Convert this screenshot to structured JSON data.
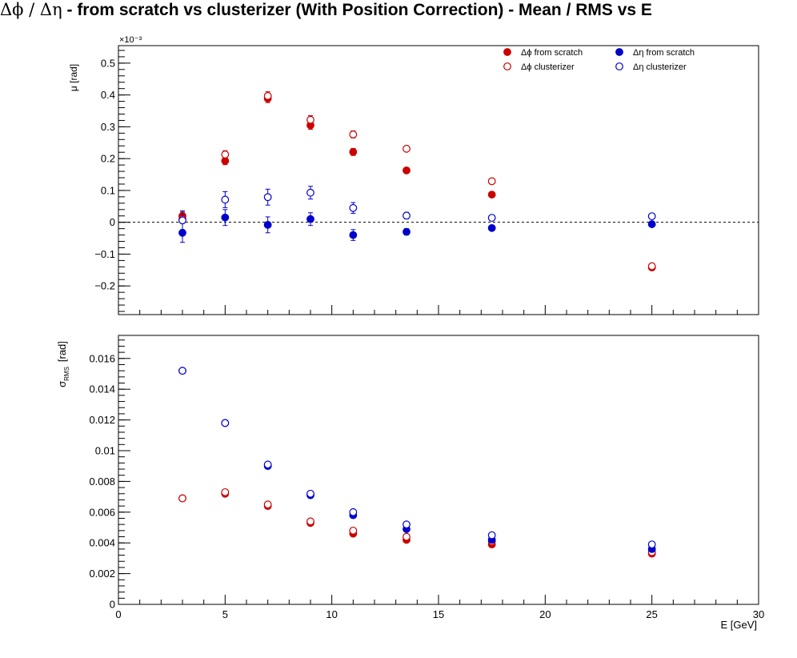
{
  "title": {
    "greek": "Δϕ / Δη",
    "rest": "  -  from scratch vs clusterizer  (With Position Correction)  -  Mean / RMS vs E"
  },
  "chart_data": [
    {
      "type": "scatter",
      "ylabel": "μ  [rad]",
      "exponent_label": "×10⁻³",
      "ylim": [
        -0.29,
        0.555
      ],
      "xlim": [
        0,
        30
      ],
      "yticks": [
        -0.2,
        -0.1,
        0,
        0.1,
        0.2,
        0.3,
        0.4,
        0.5
      ],
      "ytick_labels": [
        "−0.2",
        "−0.1",
        "0",
        "0.1",
        "0.2",
        "0.3",
        "0.4",
        "0.5"
      ],
      "reference_line": 0,
      "legend_position": "top-right",
      "series": [
        {
          "name": "Δϕ from scratch",
          "color": "#cc0000",
          "filled": true,
          "x": [
            3,
            5,
            7,
            9,
            11,
            13.5,
            17.5,
            25
          ],
          "y": [
            0.02,
            0.193,
            0.389,
            0.305,
            0.221,
            0.163,
            0.087,
            -0.142
          ],
          "err": [
            0.012,
            0.012,
            0.013,
            0.013,
            0.011,
            0.008,
            0.005,
            0.004
          ]
        },
        {
          "name": "Δϕ clusterizer",
          "color": "#cc0000",
          "filled": false,
          "x": [
            3,
            5,
            7,
            9,
            11,
            13.5,
            17.5,
            25
          ],
          "y": [
            0.01,
            0.213,
            0.397,
            0.322,
            0.276,
            0.231,
            0.129,
            -0.138
          ],
          "err": [
            0.012,
            0.012,
            0.013,
            0.013,
            0.011,
            0.006,
            0.004,
            0.003
          ]
        },
        {
          "name": "Δη from scratch",
          "color": "#0000cc",
          "filled": true,
          "x": [
            3,
            5,
            7,
            9,
            11,
            13.5,
            17.5,
            25
          ],
          "y": [
            -0.033,
            0.015,
            -0.008,
            0.01,
            -0.04,
            -0.03,
            -0.018,
            -0.006
          ],
          "err": [
            0.03,
            0.025,
            0.025,
            0.02,
            0.017,
            0.01,
            0.005,
            0.004
          ]
        },
        {
          "name": "Δη clusterizer",
          "color": "#0000cc",
          "filled": false,
          "x": [
            3,
            5,
            7,
            9,
            11,
            13.5,
            17.5,
            25
          ],
          "y": [
            0.006,
            0.071,
            0.079,
            0.093,
            0.045,
            0.021,
            0.014,
            0.019
          ],
          "err": [
            0.03,
            0.025,
            0.025,
            0.02,
            0.017,
            0.01,
            0.005,
            0.004
          ]
        }
      ]
    },
    {
      "type": "scatter",
      "ylabel_main": "σ",
      "ylabel_sub": "RMS",
      "ylabel_unit": "[rad]",
      "xlabel": "E  [GeV]",
      "xlim": [
        0,
        30
      ],
      "ylim": [
        0,
        0.0175
      ],
      "xticks": [
        0,
        5,
        10,
        15,
        20,
        25,
        30
      ],
      "xtick_labels": [
        "0",
        "5",
        "10",
        "15",
        "20",
        "25",
        "30"
      ],
      "yticks": [
        0,
        0.002,
        0.004,
        0.006,
        0.008,
        0.01,
        0.012,
        0.014,
        0.016
      ],
      "ytick_labels": [
        "0",
        "0.002",
        "0.004",
        "0.006",
        "0.008",
        "0.01",
        "0.012",
        "0.014",
        "0.016"
      ],
      "series": [
        {
          "name": "Δϕ from scratch",
          "color": "#cc0000",
          "filled": true,
          "x": [
            3,
            5,
            7,
            9,
            11,
            13.5,
            17.5,
            25
          ],
          "y": [
            0.0069,
            0.0072,
            0.0064,
            0.0053,
            0.0046,
            0.0042,
            0.0039,
            0.0033
          ]
        },
        {
          "name": "Δϕ clusterizer",
          "color": "#cc0000",
          "filled": false,
          "x": [
            3,
            5,
            7,
            9,
            11,
            13.5,
            17.5,
            25
          ],
          "y": [
            0.0069,
            0.0073,
            0.0065,
            0.0054,
            0.0048,
            0.0044,
            0.0041,
            0.0034
          ]
        },
        {
          "name": "Δη from scratch",
          "color": "#0000cc",
          "filled": true,
          "x": [
            3,
            5,
            7,
            9,
            11,
            13.5,
            17.5,
            25
          ],
          "y": [
            0.0152,
            0.0118,
            0.009,
            0.0071,
            0.0058,
            0.0049,
            0.0042,
            0.0036
          ]
        },
        {
          "name": "Δη clusterizer",
          "color": "#0000cc",
          "filled": false,
          "x": [
            3,
            5,
            7,
            9,
            11,
            13.5,
            17.5,
            25
          ],
          "y": [
            0.0152,
            0.0118,
            0.0091,
            0.0072,
            0.006,
            0.0052,
            0.0045,
            0.0039
          ]
        }
      ]
    }
  ]
}
